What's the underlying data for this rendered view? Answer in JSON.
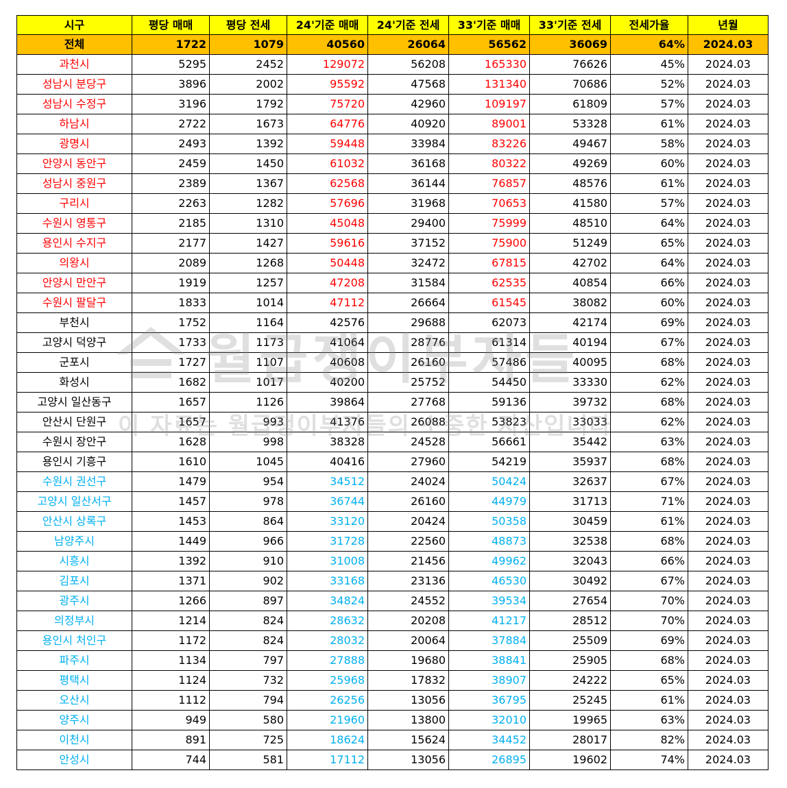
{
  "colors": {
    "header_bg": "#ffff00",
    "total_bg": "#ffc000",
    "red": "#ff0000",
    "blue": "#00b0f0",
    "black": "#000000"
  },
  "headers": [
    "시구",
    "평당 매매",
    "평당 전세",
    "24'기준 매매",
    "24'기준 전세",
    "33'기준 매매",
    "33'기준 전세",
    "전세가율",
    "년월"
  ],
  "total": {
    "name": "전체",
    "pp_sale": "1722",
    "pp_jeonse": "1079",
    "sale24": "40560",
    "jeonse24": "26064",
    "sale33": "56562",
    "jeonse33": "36069",
    "ratio": "64%",
    "ym": "2024.03"
  },
  "rows": [
    {
      "name": "과천시",
      "color": "red",
      "pp_sale": "5295",
      "pp_jeonse": "2452",
      "sale24": "129072",
      "jeonse24": "56208",
      "sale33": "165330",
      "jeonse33": "76626",
      "ratio": "45%",
      "ym": "2024.03"
    },
    {
      "name": "성남시 분당구",
      "color": "red",
      "pp_sale": "3896",
      "pp_jeonse": "2002",
      "sale24": "95592",
      "jeonse24": "47568",
      "sale33": "131340",
      "jeonse33": "70686",
      "ratio": "52%",
      "ym": "2024.03"
    },
    {
      "name": "성남시 수정구",
      "color": "red",
      "pp_sale": "3196",
      "pp_jeonse": "1792",
      "sale24": "75720",
      "jeonse24": "42960",
      "sale33": "109197",
      "jeonse33": "61809",
      "ratio": "57%",
      "ym": "2024.03"
    },
    {
      "name": "하남시",
      "color": "red",
      "pp_sale": "2722",
      "pp_jeonse": "1673",
      "sale24": "64776",
      "jeonse24": "40920",
      "sale33": "89001",
      "jeonse33": "53328",
      "ratio": "61%",
      "ym": "2024.03"
    },
    {
      "name": "광명시",
      "color": "red",
      "pp_sale": "2493",
      "pp_jeonse": "1392",
      "sale24": "59448",
      "jeonse24": "33984",
      "sale33": "83226",
      "jeonse33": "49467",
      "ratio": "58%",
      "ym": "2024.03"
    },
    {
      "name": "안양시 동안구",
      "color": "red",
      "pp_sale": "2459",
      "pp_jeonse": "1450",
      "sale24": "61032",
      "jeonse24": "36168",
      "sale33": "80322",
      "jeonse33": "49269",
      "ratio": "60%",
      "ym": "2024.03"
    },
    {
      "name": "성남시 중원구",
      "color": "red",
      "pp_sale": "2389",
      "pp_jeonse": "1367",
      "sale24": "62568",
      "jeonse24": "36144",
      "sale33": "76857",
      "jeonse33": "48576",
      "ratio": "61%",
      "ym": "2024.03"
    },
    {
      "name": "구리시",
      "color": "red",
      "pp_sale": "2263",
      "pp_jeonse": "1282",
      "sale24": "57696",
      "jeonse24": "31968",
      "sale33": "70653",
      "jeonse33": "41580",
      "ratio": "57%",
      "ym": "2024.03"
    },
    {
      "name": "수원시 영통구",
      "color": "red",
      "pp_sale": "2185",
      "pp_jeonse": "1310",
      "sale24": "45048",
      "jeonse24": "29400",
      "sale33": "75999",
      "jeonse33": "48510",
      "ratio": "64%",
      "ym": "2024.03"
    },
    {
      "name": "용인시 수지구",
      "color": "red",
      "pp_sale": "2177",
      "pp_jeonse": "1427",
      "sale24": "59616",
      "jeonse24": "37152",
      "sale33": "75900",
      "jeonse33": "51249",
      "ratio": "65%",
      "ym": "2024.03"
    },
    {
      "name": "의왕시",
      "color": "red",
      "pp_sale": "2089",
      "pp_jeonse": "1268",
      "sale24": "50448",
      "jeonse24": "32472",
      "sale33": "67815",
      "jeonse33": "42702",
      "ratio": "64%",
      "ym": "2024.03"
    },
    {
      "name": "안양시 만안구",
      "color": "red",
      "pp_sale": "1919",
      "pp_jeonse": "1257",
      "sale24": "47208",
      "jeonse24": "31584",
      "sale33": "62535",
      "jeonse33": "40854",
      "ratio": "66%",
      "ym": "2024.03"
    },
    {
      "name": "수원시 팔달구",
      "color": "red",
      "pp_sale": "1833",
      "pp_jeonse": "1014",
      "sale24": "47112",
      "jeonse24": "26664",
      "sale33": "61545",
      "jeonse33": "38082",
      "ratio": "60%",
      "ym": "2024.03"
    },
    {
      "name": "부천시",
      "color": "black",
      "pp_sale": "1752",
      "pp_jeonse": "1164",
      "sale24": "42576",
      "jeonse24": "29688",
      "sale33": "62073",
      "jeonse33": "42174",
      "ratio": "69%",
      "ym": "2024.03"
    },
    {
      "name": "고양시 덕양구",
      "color": "black",
      "pp_sale": "1733",
      "pp_jeonse": "1173",
      "sale24": "41064",
      "jeonse24": "28776",
      "sale33": "61314",
      "jeonse33": "40194",
      "ratio": "67%",
      "ym": "2024.03"
    },
    {
      "name": "군포시",
      "color": "black",
      "pp_sale": "1727",
      "pp_jeonse": "1107",
      "sale24": "40608",
      "jeonse24": "26160",
      "sale33": "57486",
      "jeonse33": "40095",
      "ratio": "68%",
      "ym": "2024.03"
    },
    {
      "name": "화성시",
      "color": "black",
      "pp_sale": "1682",
      "pp_jeonse": "1017",
      "sale24": "40200",
      "jeonse24": "25752",
      "sale33": "54450",
      "jeonse33": "33330",
      "ratio": "62%",
      "ym": "2024.03"
    },
    {
      "name": "고양시 일산동구",
      "color": "black",
      "pp_sale": "1657",
      "pp_jeonse": "1126",
      "sale24": "39864",
      "jeonse24": "27768",
      "sale33": "59136",
      "jeonse33": "39732",
      "ratio": "68%",
      "ym": "2024.03"
    },
    {
      "name": "안산시 단원구",
      "color": "black",
      "pp_sale": "1657",
      "pp_jeonse": "993",
      "sale24": "41376",
      "jeonse24": "26088",
      "sale33": "53823",
      "jeonse33": "33033",
      "ratio": "62%",
      "ym": "2024.03"
    },
    {
      "name": "수원시 장안구",
      "color": "black",
      "pp_sale": "1628",
      "pp_jeonse": "998",
      "sale24": "38328",
      "jeonse24": "24528",
      "sale33": "56661",
      "jeonse33": "35442",
      "ratio": "63%",
      "ym": "2024.03"
    },
    {
      "name": "용인시 기흥구",
      "color": "black",
      "pp_sale": "1610",
      "pp_jeonse": "1045",
      "sale24": "40416",
      "jeonse24": "27960",
      "sale33": "54219",
      "jeonse33": "35937",
      "ratio": "68%",
      "ym": "2024.03"
    },
    {
      "name": "수원시 권선구",
      "color": "blue",
      "pp_sale": "1479",
      "pp_jeonse": "954",
      "sale24": "34512",
      "jeonse24": "24024",
      "sale33": "50424",
      "jeonse33": "32637",
      "ratio": "67%",
      "ym": "2024.03"
    },
    {
      "name": "고양시 일산서구",
      "color": "blue",
      "pp_sale": "1457",
      "pp_jeonse": "978",
      "sale24": "36744",
      "jeonse24": "26160",
      "sale33": "44979",
      "jeonse33": "31713",
      "ratio": "71%",
      "ym": "2024.03"
    },
    {
      "name": "안산시 상록구",
      "color": "blue",
      "pp_sale": "1453",
      "pp_jeonse": "864",
      "sale24": "33120",
      "jeonse24": "20424",
      "sale33": "50358",
      "jeonse33": "30459",
      "ratio": "61%",
      "ym": "2024.03"
    },
    {
      "name": "남양주시",
      "color": "blue",
      "pp_sale": "1449",
      "pp_jeonse": "966",
      "sale24": "31728",
      "jeonse24": "22560",
      "sale33": "48873",
      "jeonse33": "32538",
      "ratio": "68%",
      "ym": "2024.03"
    },
    {
      "name": "시흥시",
      "color": "blue",
      "pp_sale": "1392",
      "pp_jeonse": "910",
      "sale24": "31008",
      "jeonse24": "21456",
      "sale33": "49962",
      "jeonse33": "32043",
      "ratio": "66%",
      "ym": "2024.03"
    },
    {
      "name": "김포시",
      "color": "blue",
      "pp_sale": "1371",
      "pp_jeonse": "902",
      "sale24": "33168",
      "jeonse24": "23136",
      "sale33": "46530",
      "jeonse33": "30492",
      "ratio": "67%",
      "ym": "2024.03"
    },
    {
      "name": "광주시",
      "color": "blue",
      "pp_sale": "1266",
      "pp_jeonse": "897",
      "sale24": "34824",
      "jeonse24": "24552",
      "sale33": "39534",
      "jeonse33": "27654",
      "ratio": "70%",
      "ym": "2024.03"
    },
    {
      "name": "의정부시",
      "color": "blue",
      "pp_sale": "1214",
      "pp_jeonse": "824",
      "sale24": "28632",
      "jeonse24": "20208",
      "sale33": "41217",
      "jeonse33": "28512",
      "ratio": "70%",
      "ym": "2024.03"
    },
    {
      "name": "용인시 처인구",
      "color": "blue",
      "pp_sale": "1172",
      "pp_jeonse": "824",
      "sale24": "28032",
      "jeonse24": "20064",
      "sale33": "37884",
      "jeonse33": "25509",
      "ratio": "69%",
      "ym": "2024.03"
    },
    {
      "name": "파주시",
      "color": "blue",
      "pp_sale": "1134",
      "pp_jeonse": "797",
      "sale24": "27888",
      "jeonse24": "19680",
      "sale33": "38841",
      "jeonse33": "25905",
      "ratio": "68%",
      "ym": "2024.03"
    },
    {
      "name": "평택시",
      "color": "blue",
      "pp_sale": "1124",
      "pp_jeonse": "732",
      "sale24": "25968",
      "jeonse24": "17832",
      "sale33": "38907",
      "jeonse33": "24222",
      "ratio": "65%",
      "ym": "2024.03"
    },
    {
      "name": "오산시",
      "color": "blue",
      "pp_sale": "1112",
      "pp_jeonse": "794",
      "sale24": "26256",
      "jeonse24": "13056",
      "sale33": "36795",
      "jeonse33": "25245",
      "ratio": "61%",
      "ym": "2024.03"
    },
    {
      "name": "양주시",
      "color": "blue",
      "pp_sale": "949",
      "pp_jeonse": "580",
      "sale24": "21960",
      "jeonse24": "13800",
      "sale33": "32010",
      "jeonse33": "19965",
      "ratio": "63%",
      "ym": "2024.03"
    },
    {
      "name": "이천시",
      "color": "blue",
      "pp_sale": "891",
      "pp_jeonse": "725",
      "sale24": "18624",
      "jeonse24": "15624",
      "sale33": "34452",
      "jeonse33": "28017",
      "ratio": "82%",
      "ym": "2024.03"
    },
    {
      "name": "안성시",
      "color": "blue",
      "pp_sale": "744",
      "pp_jeonse": "581",
      "sale24": "17112",
      "jeonse24": "13056",
      "sale33": "26895",
      "jeonse33": "19602",
      "ratio": "74%",
      "ym": "2024.03"
    }
  ],
  "watermark": {
    "main": "월급쟁이부자들",
    "sub": "이 자료는 월급쟁이부자들의 소중한 자산입니다"
  }
}
